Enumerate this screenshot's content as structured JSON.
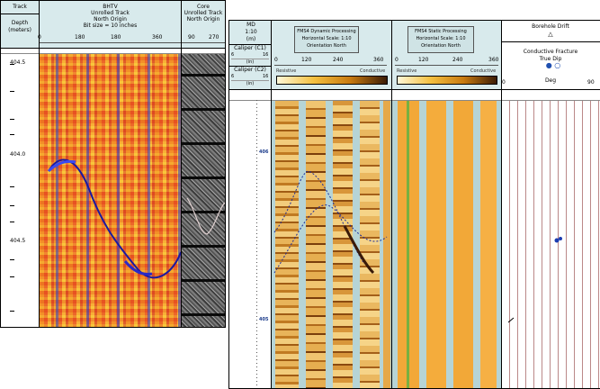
{
  "left_panel": {
    "track": {
      "title": "Track",
      "depth_label": "Depth",
      "depth_unit": "(meters)"
    },
    "bhtv": {
      "title": "BHTV",
      "line2": "Unrolled Track",
      "line3": "North Origin",
      "line4": "Bit size = 10 inches",
      "scale": [
        "0",
        "180",
        "180",
        "360"
      ]
    },
    "core": {
      "title": "Core",
      "line2": "Unrolled Track",
      "line3": "North Origin",
      "scale": [
        "90",
        "270"
      ]
    },
    "depth_ticks": [
      "404.5",
      "404.0",
      "404.5"
    ]
  },
  "right_panel": {
    "md": {
      "label": "MD",
      "scale": "1:10",
      "unit": "(m)"
    },
    "caliper1": {
      "label": "Caliper (C1)",
      "min": "6",
      "max": "16",
      "unit": "(in)"
    },
    "caliper2": {
      "label": "Caliper (C2)",
      "min": "6",
      "max": "16",
      "unit": "(in)"
    },
    "dynamic": {
      "title": "FMS4 Dynamic Processing",
      "line2": "Horizontal Scale: 1:10",
      "line3": "Orientation North",
      "scale": [
        "0",
        "120",
        "240",
        "360"
      ],
      "legend": [
        "Resistive",
        "Conductive"
      ]
    },
    "static": {
      "title": "FMS4 Static Processing",
      "line2": "Horizontal Scale: 1:10",
      "line3": "Orientation North",
      "scale": [
        "0",
        "120",
        "240",
        "360"
      ],
      "legend": [
        "Resistive",
        "Conductive"
      ]
    },
    "drift": {
      "title": "Borehole Drift",
      "line2": "Conductive Fracture",
      "line3": "True Dip",
      "min": "0",
      "unit": "Deg",
      "max": "90"
    },
    "depth_marks": [
      "406",
      "405"
    ]
  }
}
